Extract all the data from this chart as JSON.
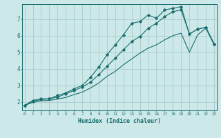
{
  "xlabel": "Humidex (Indice chaleur)",
  "bg_color": "#cce8e8",
  "grid_color": "#aacccc",
  "line_color": "#1a6e6e",
  "x_ticks": [
    0,
    1,
    2,
    3,
    4,
    5,
    6,
    7,
    8,
    9,
    10,
    11,
    12,
    13,
    14,
    15,
    16,
    17,
    18,
    19,
    20,
    21,
    22,
    23
  ],
  "y_ticks": [
    2,
    3,
    4,
    5,
    6,
    7
  ],
  "xlim": [
    -0.3,
    23.3
  ],
  "ylim": [
    1.5,
    7.9
  ],
  "line1_x": [
    0,
    1,
    2,
    3,
    4,
    5,
    6,
    7,
    8,
    9,
    10,
    11,
    12,
    13,
    14,
    15,
    16,
    17,
    18,
    19,
    20,
    21,
    22,
    23
  ],
  "line1_y": [
    1.8,
    2.1,
    2.2,
    2.2,
    2.4,
    2.55,
    2.8,
    3.0,
    3.5,
    4.1,
    4.85,
    5.45,
    6.05,
    6.75,
    6.85,
    7.25,
    7.05,
    7.55,
    7.65,
    7.75,
    6.1,
    6.4,
    6.5,
    5.5
  ],
  "line2_x": [
    0,
    1,
    2,
    3,
    4,
    5,
    6,
    7,
    8,
    9,
    10,
    11,
    12,
    13,
    14,
    15,
    16,
    17,
    18,
    19,
    20,
    21,
    22,
    23
  ],
  "line2_y": [
    1.8,
    2.05,
    2.15,
    2.2,
    2.3,
    2.5,
    2.7,
    2.9,
    3.2,
    3.65,
    4.15,
    4.65,
    5.15,
    5.65,
    5.95,
    6.45,
    6.75,
    7.15,
    7.45,
    7.55,
    6.1,
    6.4,
    6.5,
    5.5
  ],
  "line3_x": [
    0,
    1,
    2,
    3,
    4,
    5,
    6,
    7,
    8,
    9,
    10,
    11,
    12,
    13,
    14,
    15,
    16,
    17,
    18,
    19,
    20,
    21,
    22,
    23
  ],
  "line3_y": [
    1.8,
    1.98,
    2.08,
    2.1,
    2.18,
    2.28,
    2.45,
    2.6,
    2.85,
    3.15,
    3.55,
    3.85,
    4.25,
    4.6,
    4.95,
    5.25,
    5.45,
    5.75,
    6.0,
    6.15,
    5.0,
    6.05,
    6.45,
    5.45
  ]
}
